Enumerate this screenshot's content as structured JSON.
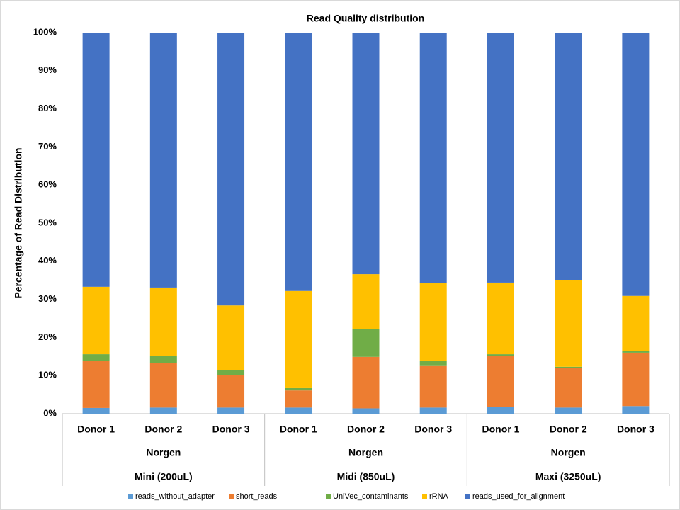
{
  "chart_data": {
    "type": "stacked_bar",
    "title": "Read Quality distribution",
    "y_label": "Percentage of Read Distribution",
    "categories": [
      "Donor 1",
      "Donor 2",
      "Donor 3",
      "Donor 1",
      "Donor 2",
      "Donor 3",
      "Donor 1",
      "Donor 2",
      "Donor 3"
    ],
    "groups": [
      {
        "label": "Norgen",
        "name": "Mini (200uL)"
      },
      {
        "label": "Norgen",
        "name": "Midi (850uL)"
      },
      {
        "label": "Norgen",
        "name": "Maxi (3250uL)"
      }
    ],
    "series": [
      {
        "name": "reads_without_adapter",
        "color": "#5b9bd5",
        "values": [
          1.5,
          1.6,
          1.6,
          1.6,
          1.4,
          1.6,
          1.8,
          1.6,
          2.0
        ]
      },
      {
        "name": "short_reads",
        "color": "#ed7d31",
        "values": [
          12.4,
          11.6,
          8.6,
          4.5,
          13.5,
          10.9,
          13.4,
          10.3,
          14.0
        ]
      },
      {
        "name": "UniVec_contaminants",
        "color": "#70ad47",
        "values": [
          1.7,
          1.9,
          1.3,
          0.6,
          7.4,
          1.3,
          0.4,
          0.4,
          0.5
        ]
      },
      {
        "name": "rRNA",
        "color": "#ffc000",
        "values": [
          17.7,
          18.0,
          16.9,
          25.5,
          14.3,
          20.4,
          18.8,
          22.8,
          14.4
        ]
      },
      {
        "name": "reads_used_for_alignment",
        "color": "#4472c4",
        "values": [
          66.7,
          66.9,
          71.6,
          67.8,
          63.4,
          65.8,
          65.6,
          64.9,
          69.1
        ]
      }
    ],
    "ylim": [
      0,
      100
    ],
    "yticks": [
      {
        "value": 0,
        "label": "0%"
      },
      {
        "value": 10,
        "label": "10%"
      },
      {
        "value": 20,
        "label": "20%"
      },
      {
        "value": 30,
        "label": "30%"
      },
      {
        "value": 40,
        "label": "40%"
      },
      {
        "value": 50,
        "label": "50%"
      },
      {
        "value": 60,
        "label": "60%"
      },
      {
        "value": 70,
        "label": "70%"
      },
      {
        "value": 80,
        "label": "80%"
      },
      {
        "value": 90,
        "label": "90%"
      },
      {
        "value": 100,
        "label": "100%"
      }
    ],
    "grid": false,
    "legend": "bottom"
  }
}
